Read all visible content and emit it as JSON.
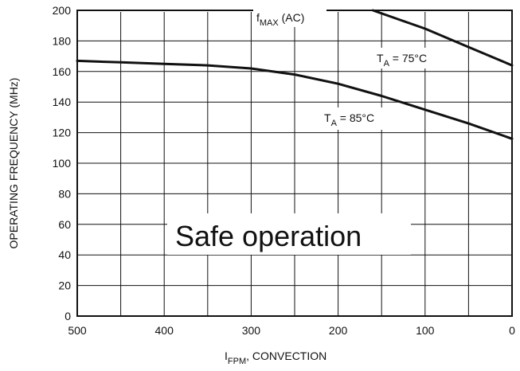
{
  "chart_data": {
    "type": "line",
    "title": "",
    "xlabel": {
      "main": "I",
      "sub": "FPM",
      "rest": ", CONVECTION"
    },
    "ylabel": "OPERATING FREQUENCY (MHz)",
    "xlim": [
      500,
      0
    ],
    "ylim": [
      0,
      200
    ],
    "x_reversed": true,
    "grid": true,
    "x_ticks": [
      500,
      400,
      300,
      200,
      100,
      0
    ],
    "y_ticks": [
      0,
      20,
      40,
      60,
      80,
      100,
      120,
      140,
      160,
      180,
      200
    ],
    "reference_line": {
      "y": 200,
      "style": "dashed",
      "label": {
        "main": "f",
        "sub": "MAX",
        "rest": " (AC)"
      }
    },
    "series": [
      {
        "name": {
          "main": "T",
          "sub": "A",
          "rest": " = 75°C"
        },
        "x": [
          160,
          100,
          50,
          0
        ],
        "y": [
          200,
          188,
          176,
          164
        ]
      },
      {
        "name": {
          "main": "T",
          "sub": "A",
          "rest": " = 85°C"
        },
        "x": [
          500,
          450,
          400,
          350,
          300,
          250,
          200,
          150,
          100,
          50,
          0
        ],
        "y": [
          167,
          166,
          165,
          164,
          162,
          158,
          152,
          144,
          135,
          126,
          116
        ]
      }
    ],
    "annotation": "Safe operation"
  }
}
